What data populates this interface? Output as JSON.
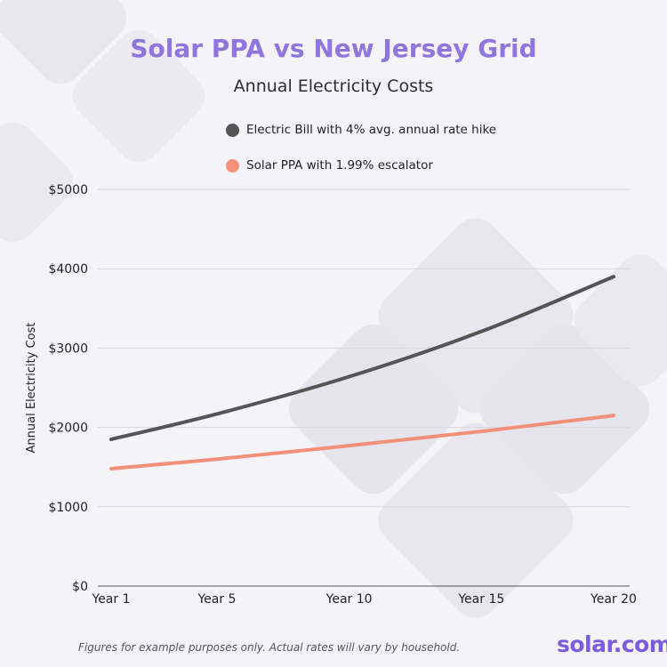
{
  "colors": {
    "title": "#8f76df",
    "electric_series": "#555555",
    "solar_series": "#f4907a",
    "grid": "#d9d7de",
    "brand": "#7b5ce0"
  },
  "footnote": "Figures for example purposes only. Actual rates will vary by household.",
  "brand": "solar.com",
  "chart_data": {
    "type": "line",
    "title": "Solar PPA vs New Jersey Grid",
    "subtitle": "Annual Electricity Costs",
    "ylabel": "Annual Electricity Cost",
    "xlabel": "",
    "ylim": [
      0,
      5000
    ],
    "yticks": [
      0,
      1000,
      2000,
      3000,
      4000,
      5000
    ],
    "ytick_labels": [
      "$0",
      "$1000",
      "$2000",
      "$3000",
      "$4000",
      "$5000"
    ],
    "xticks": [
      1,
      5,
      10,
      15,
      20
    ],
    "xtick_labels": [
      "Year 1",
      "Year 5",
      "Year 10",
      "Year 15",
      "Year 20"
    ],
    "xlim": [
      1,
      20
    ],
    "grid": true,
    "legend_position": "top",
    "series": [
      {
        "name": "Electric Bill with 4% avg. annual rate hike",
        "color": "#555555",
        "x": [
          1,
          5,
          10,
          15,
          20
        ],
        "y": [
          1850,
          2170,
          2640,
          3210,
          3900
        ]
      },
      {
        "name": "Solar PPA with 1.99% escalator",
        "color": "#f4907a",
        "x": [
          1,
          5,
          10,
          15,
          20
        ],
        "y": [
          1480,
          1600,
          1770,
          1950,
          2150
        ]
      }
    ]
  }
}
